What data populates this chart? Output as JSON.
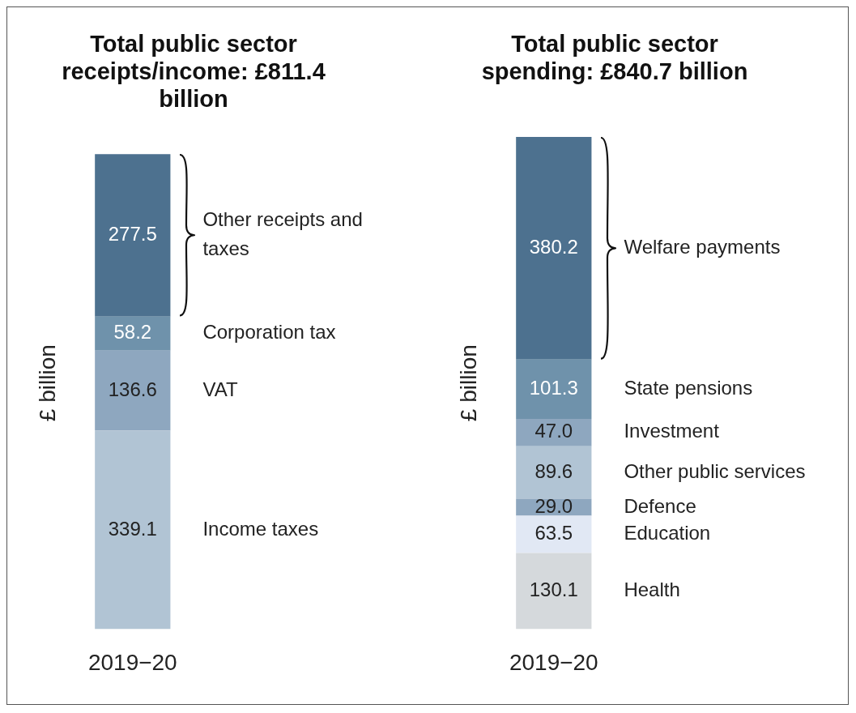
{
  "chart_data": [
    {
      "type": "bar",
      "title": "Total public sector receipts/income: £811.4 billion",
      "ylabel": "£ billion",
      "categories": [
        "2019−20"
      ],
      "stacked": true,
      "tick_labels": "x",
      "series": [
        {
          "name": "Income taxes",
          "color": "#b1c4d4",
          "values": [
            339.1
          ],
          "value_labels": [
            "339.1"
          ]
        },
        {
          "name": "VAT",
          "color": "#8ea7bf",
          "values": [
            136.6
          ],
          "value_labels": [
            "136.6"
          ]
        },
        {
          "name": "Corporation tax",
          "color": "#6f92ab",
          "values": [
            58.2
          ],
          "value_labels": [
            "58.2"
          ]
        },
        {
          "name": "Other receipts and taxes",
          "color": "#4d718f",
          "values": [
            277.5
          ],
          "value_labels": [
            "277.5"
          ]
        }
      ]
    },
    {
      "type": "bar",
      "title": "Total public sector spending: £840.7 billion",
      "ylabel": "£ billion",
      "categories": [
        "2019−20"
      ],
      "stacked": true,
      "tick_labels": "x",
      "series": [
        {
          "name": "Health",
          "color": "#d5d9dc",
          "values": [
            130.1
          ],
          "value_labels": [
            "130.1"
          ]
        },
        {
          "name": "Education",
          "color": "#e1e8f4",
          "values": [
            63.5
          ],
          "value_labels": [
            "63.5"
          ]
        },
        {
          "name": "Defence",
          "color": "#8ea7bf",
          "values": [
            29.0
          ],
          "value_labels": [
            "29.0"
          ]
        },
        {
          "name": "Other public services",
          "color": "#b1c4d4",
          "values": [
            89.6
          ],
          "value_labels": [
            "89.6"
          ]
        },
        {
          "name": "Investment",
          "color": "#8ea7bf",
          "values": [
            47.0
          ],
          "value_labels": [
            "47.0"
          ]
        },
        {
          "name": "State pensions",
          "color": "#6f92ab",
          "values": [
            101.3
          ],
          "value_labels": [
            "101.3"
          ]
        },
        {
          "name": "Welfare payments",
          "color": "#4d718f",
          "values": [
            380.2
          ],
          "value_labels": [
            "380.2"
          ]
        }
      ]
    }
  ]
}
